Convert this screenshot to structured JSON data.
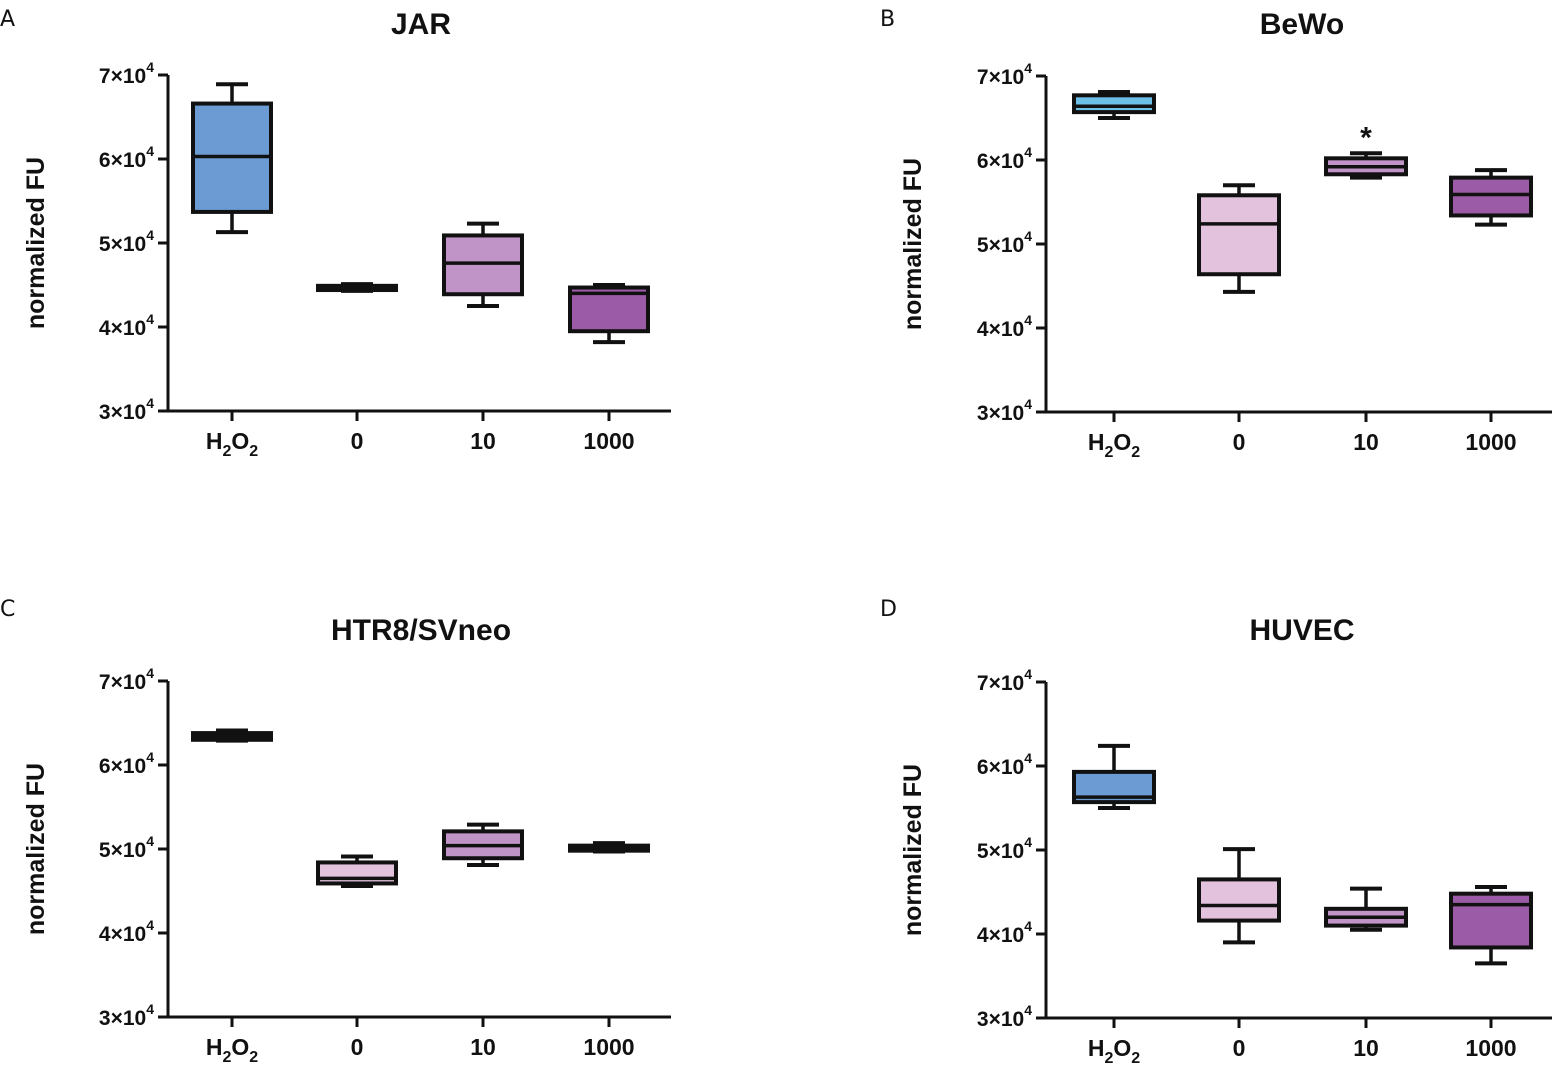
{
  "colors": {
    "h2o2_blue": "#6b9bd2",
    "h2o2_light_blue": "#6dbfe6",
    "dose_0": "#e2c2dd",
    "dose_10": "#c194c7",
    "dose_1000": "#9b5ba6",
    "axis": "#111111"
  },
  "chart_data": [
    {
      "type": "box",
      "panel_label": "A",
      "title": "JAR",
      "ylabel": "normalized FU",
      "xlabel": "",
      "ylim": [
        30000,
        70000
      ],
      "yticks": [
        {
          "value": 30000,
          "mantissa": "3×10",
          "exp": "4"
        },
        {
          "value": 40000,
          "mantissa": "4×10",
          "exp": "4"
        },
        {
          "value": 50000,
          "mantissa": "5×10",
          "exp": "4"
        },
        {
          "value": 60000,
          "mantissa": "6×10",
          "exp": "4"
        },
        {
          "value": 70000,
          "mantissa": "7×10",
          "exp": "4"
        }
      ],
      "categories": [
        {
          "label": "H",
          "sub": "2",
          "label2": "O",
          "sub2": "2"
        },
        {
          "label": "0"
        },
        {
          "label": "10"
        },
        {
          "label": "1000"
        }
      ],
      "boxes": [
        {
          "min": 51300,
          "q1": 53700,
          "median": 60300,
          "q3": 66600,
          "max": 68900,
          "color": "#6b9bd2"
        },
        {
          "min": 44300,
          "q1": 44400,
          "median": 44700,
          "q3": 44900,
          "max": 45100,
          "color": "#e2c2dd"
        },
        {
          "min": 42500,
          "q1": 43900,
          "median": 47600,
          "q3": 50900,
          "max": 52300,
          "color": "#c194c7"
        },
        {
          "min": 38200,
          "q1": 39500,
          "median": 44000,
          "q3": 44700,
          "max": 45000,
          "color": "#9b5ba6"
        }
      ],
      "annotations": []
    },
    {
      "type": "box",
      "panel_label": "B",
      "title": "BeWo",
      "ylabel": "normalized FU",
      "xlabel": "",
      "ylim": [
        30000,
        70000
      ],
      "yticks": [
        {
          "value": 30000,
          "mantissa": "3×10",
          "exp": "4"
        },
        {
          "value": 40000,
          "mantissa": "4×10",
          "exp": "4"
        },
        {
          "value": 50000,
          "mantissa": "5×10",
          "exp": "4"
        },
        {
          "value": 60000,
          "mantissa": "6×10",
          "exp": "4"
        },
        {
          "value": 70000,
          "mantissa": "7×10",
          "exp": "4"
        }
      ],
      "categories": [
        {
          "label": "H",
          "sub": "2",
          "label2": "O",
          "sub2": "2"
        },
        {
          "label": "0"
        },
        {
          "label": "10"
        },
        {
          "label": "1000"
        }
      ],
      "boxes": [
        {
          "min": 65000,
          "q1": 65700,
          "median": 66400,
          "q3": 67700,
          "max": 68100,
          "color": "#6dbfe6"
        },
        {
          "min": 44300,
          "q1": 46400,
          "median": 52400,
          "q3": 55800,
          "max": 57000,
          "color": "#e2c2dd"
        },
        {
          "min": 57900,
          "q1": 58300,
          "median": 59200,
          "q3": 60200,
          "max": 60800,
          "color": "#c194c7"
        },
        {
          "min": 52300,
          "q1": 53400,
          "median": 55900,
          "q3": 57900,
          "max": 58800,
          "color": "#9b5ba6"
        }
      ],
      "annotations": [
        {
          "category_index": 2,
          "text": "*"
        }
      ]
    },
    {
      "type": "box",
      "panel_label": "C",
      "title": "HTR8/SVneo",
      "ylabel": "normalized FU",
      "xlabel": "",
      "ylim": [
        30000,
        70000
      ],
      "yticks": [
        {
          "value": 30000,
          "mantissa": "3×10",
          "exp": "4"
        },
        {
          "value": 40000,
          "mantissa": "4×10",
          "exp": "4"
        },
        {
          "value": 50000,
          "mantissa": "5×10",
          "exp": "4"
        },
        {
          "value": 60000,
          "mantissa": "6×10",
          "exp": "4"
        },
        {
          "value": 70000,
          "mantissa": "7×10",
          "exp": "4"
        }
      ],
      "categories": [
        {
          "label": "H",
          "sub": "2",
          "label2": "O",
          "sub2": "2"
        },
        {
          "label": "0"
        },
        {
          "label": "10"
        },
        {
          "label": "1000"
        }
      ],
      "boxes": [
        {
          "min": 62900,
          "q1": 63000,
          "median": 63400,
          "q3": 63800,
          "max": 64100,
          "color": "#6b9bd2"
        },
        {
          "min": 45600,
          "q1": 45900,
          "median": 46500,
          "q3": 48400,
          "max": 49100,
          "color": "#e2c2dd"
        },
        {
          "min": 48100,
          "q1": 48900,
          "median": 50400,
          "q3": 52100,
          "max": 52900,
          "color": "#c194c7"
        },
        {
          "min": 49700,
          "q1": 49800,
          "median": 50100,
          "q3": 50400,
          "max": 50700,
          "color": "#9b5ba6"
        }
      ],
      "annotations": []
    },
    {
      "type": "box",
      "panel_label": "D",
      "title": "HUVEC",
      "ylabel": "normalized FU",
      "xlabel": "",
      "ylim": [
        30000,
        70000
      ],
      "yticks": [
        {
          "value": 30000,
          "mantissa": "3×10",
          "exp": "4"
        },
        {
          "value": 40000,
          "mantissa": "4×10",
          "exp": "4"
        },
        {
          "value": 50000,
          "mantissa": "5×10",
          "exp": "4"
        },
        {
          "value": 60000,
          "mantissa": "6×10",
          "exp": "4"
        },
        {
          "value": 70000,
          "mantissa": "7×10",
          "exp": "4"
        }
      ],
      "categories": [
        {
          "label": "H",
          "sub": "2",
          "label2": "O",
          "sub2": "2"
        },
        {
          "label": "0"
        },
        {
          "label": "10"
        },
        {
          "label": "1000"
        }
      ],
      "boxes": [
        {
          "min": 55000,
          "q1": 55700,
          "median": 56300,
          "q3": 59300,
          "max": 62400,
          "color": "#6b9bd2"
        },
        {
          "min": 39000,
          "q1": 41600,
          "median": 43400,
          "q3": 46500,
          "max": 50100,
          "color": "#e2c2dd"
        },
        {
          "min": 40500,
          "q1": 41000,
          "median": 42000,
          "q3": 43000,
          "max": 45400,
          "color": "#c194c7"
        },
        {
          "min": 36500,
          "q1": 38400,
          "median": 43500,
          "q3": 44800,
          "max": 45600,
          "color": "#9b5ba6"
        }
      ],
      "annotations": []
    }
  ]
}
